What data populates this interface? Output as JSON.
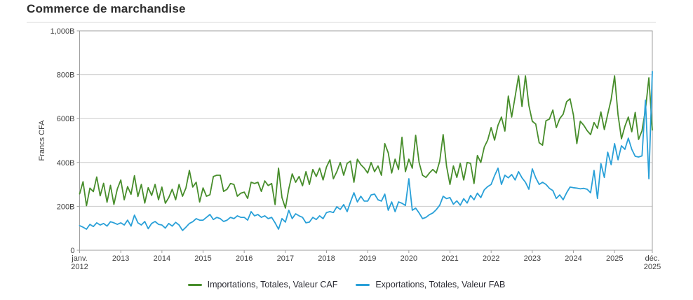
{
  "page": {
    "title": "Commerce de marchandise"
  },
  "chart_data": {
    "type": "line",
    "title": "Commerce de marchandise",
    "xlabel": "",
    "ylabel": "Francs CFA",
    "ylim": [
      0,
      1000
    ],
    "grid": true,
    "legend_position": "bottom-center",
    "y_ticks": [
      {
        "value": 0,
        "label": "0"
      },
      {
        "value": 200,
        "label": "200B"
      },
      {
        "value": 400,
        "label": "400B"
      },
      {
        "value": 600,
        "label": "600B"
      },
      {
        "value": 800,
        "label": "800B"
      },
      {
        "value": 1000,
        "label": "1,000B"
      }
    ],
    "x_ticks": [
      {
        "month": 0,
        "line1": "janv.",
        "line2": "2012"
      },
      {
        "month": 12,
        "line1": "2013"
      },
      {
        "month": 24,
        "line1": "2014"
      },
      {
        "month": 36,
        "line1": "2015"
      },
      {
        "month": 48,
        "line1": "2016"
      },
      {
        "month": 60,
        "line1": "2017"
      },
      {
        "month": 72,
        "line1": "2018"
      },
      {
        "month": 84,
        "line1": "2019"
      },
      {
        "month": 96,
        "line1": "2020"
      },
      {
        "month": 108,
        "line1": "2021"
      },
      {
        "month": 120,
        "line1": "2022"
      },
      {
        "month": 132,
        "line1": "2023"
      },
      {
        "month": 144,
        "line1": "2024"
      },
      {
        "month": 156,
        "line1": "2025"
      },
      {
        "month": 167,
        "line1": "déc.",
        "line2": "2025"
      }
    ],
    "x_start_label": "janv. 2012",
    "x_end_label": "déc. 2025",
    "months_total": 168,
    "series": [
      {
        "name": "Importations, Totales, Valeur CAF",
        "color": "#478d2b",
        "unit": "Francs CFA (milliards)",
        "values": [
          257,
          312,
          203,
          283,
          267,
          334,
          248,
          305,
          219,
          296,
          209,
          280,
          320,
          230,
          290,
          255,
          340,
          245,
          300,
          215,
          285,
          250,
          300,
          230,
          288,
          214,
          240,
          278,
          230,
          300,
          246,
          284,
          364,
          288,
          310,
          220,
          284,
          246,
          253,
          336,
          342,
          342,
          268,
          278,
          304,
          300,
          246,
          260,
          265,
          236,
          310,
          304,
          310,
          268,
          316,
          295,
          304,
          208,
          374,
          240,
          192,
          280,
          348,
          310,
          336,
          294,
          358,
          300,
          368,
          336,
          374,
          320,
          380,
          412,
          326,
          358,
          400,
          342,
          396,
          406,
          310,
          415,
          390,
          374,
          352,
          400,
          358,
          384,
          342,
          486,
          444,
          352,
          415,
          368,
          515,
          358,
          415,
          374,
          524,
          400,
          342,
          332,
          352,
          368,
          352,
          406,
          527,
          384,
          300,
          384,
          332,
          396,
          320,
          400,
          396,
          304,
          432,
          400,
          470,
          502,
          559,
          502,
          570,
          607,
          543,
          703,
          607,
          700,
          795,
          655,
          795,
          660,
          588,
          575,
          490,
          479,
          590,
          598,
          639,
          559,
          600,
          620,
          677,
          690,
          617,
          486,
          588,
          570,
          545,
          527,
          582,
          556,
          630,
          550,
          620,
          687,
          795,
          618,
          508,
          565,
          607,
          540,
          628,
          505,
          545,
          640,
          786,
          548
        ]
      },
      {
        "name": "Exportations, Totales, Valeur FAB",
        "color": "#29a0d8",
        "unit": "Francs CFA (milliards)",
        "values": [
          112,
          105,
          96,
          118,
          108,
          125,
          115,
          122,
          110,
          130,
          125,
          118,
          125,
          115,
          137,
          110,
          160,
          125,
          115,
          131,
          98,
          122,
          131,
          118,
          115,
          101,
          122,
          110,
          127,
          115,
          90,
          105,
          122,
          130,
          144,
          137,
          137,
          150,
          163,
          140,
          150,
          144,
          131,
          137,
          150,
          144,
          157,
          150,
          150,
          137,
          176,
          157,
          163,
          150,
          157,
          144,
          150,
          125,
          96,
          144,
          128,
          182,
          144,
          166,
          157,
          150,
          125,
          128,
          150,
          140,
          157,
          144,
          172,
          176,
          172,
          198,
          186,
          208,
          176,
          220,
          262,
          220,
          246,
          224,
          224,
          252,
          256,
          230,
          224,
          256,
          182,
          220,
          176,
          220,
          214,
          204,
          326,
          182,
          192,
          170,
          144,
          150,
          162,
          170,
          185,
          205,
          246,
          235,
          240,
          210,
          225,
          205,
          235,
          215,
          250,
          230,
          260,
          240,
          275,
          290,
          300,
          340,
          374,
          300,
          342,
          330,
          345,
          320,
          358,
          330,
          310,
          278,
          371,
          330,
          300,
          310,
          300,
          282,
          272,
          236,
          252,
          230,
          262,
          288,
          285,
          283,
          280,
          282,
          278,
          262,
          364,
          236,
          395,
          332,
          447,
          390,
          486,
          412,
          476,
          460,
          511,
          460,
          428,
          425,
          430,
          684,
          326,
          815
        ]
      }
    ],
    "colors": {
      "grid": "#cbcbcb",
      "plot_border": "#9f9f9f",
      "tick_text": "#3f3f3f"
    }
  }
}
